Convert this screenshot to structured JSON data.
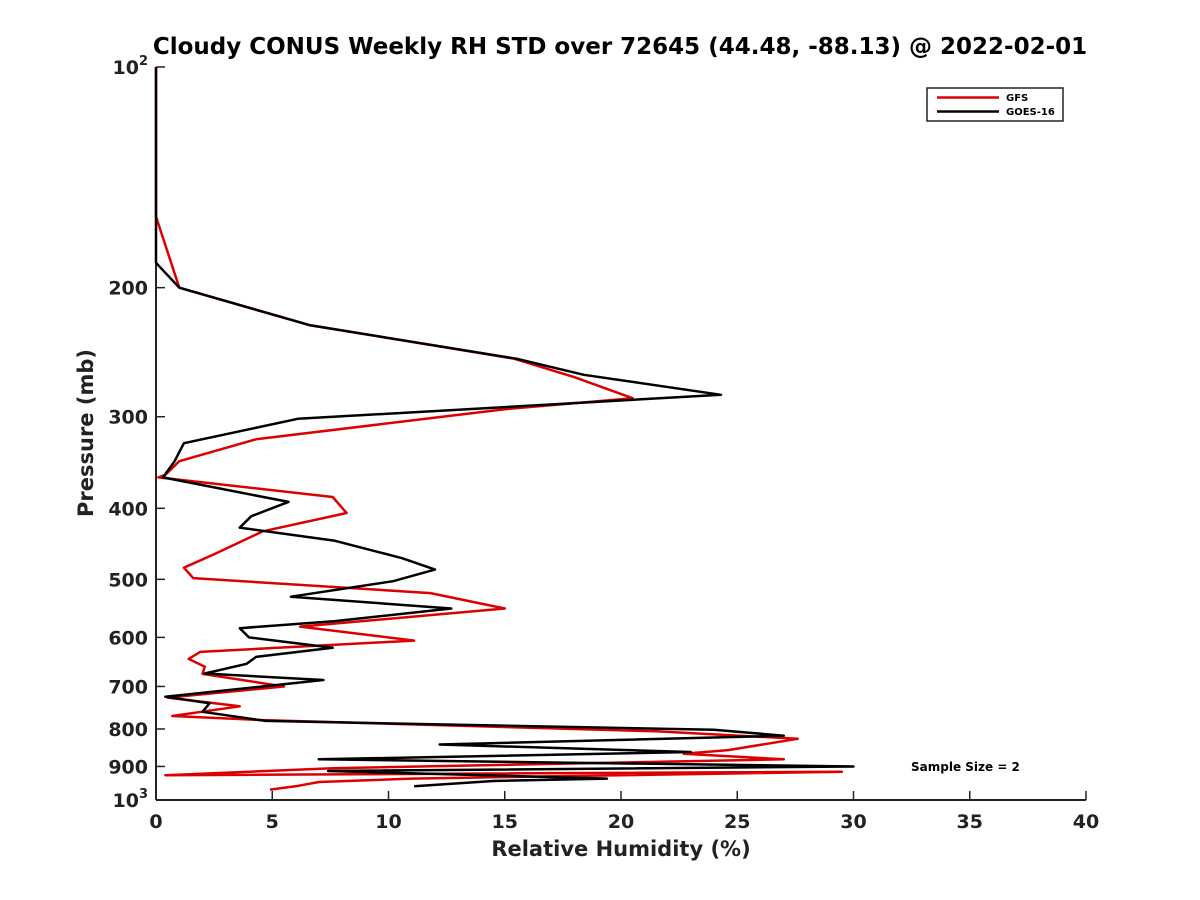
{
  "chart_data": {
    "type": "line",
    "title": "Cloudy CONUS Weekly RH STD over 72645 (44.48, -88.13) @ 2022-02-01",
    "xlabel": "Relative Humidity (%)",
    "ylabel": "Pressure (mb)",
    "xlim": [
      0,
      40
    ],
    "ylim": [
      100,
      1000
    ],
    "yscale": "log",
    "y_reversed": true,
    "xticks": [
      0,
      5,
      10,
      15,
      20,
      25,
      30,
      35,
      40
    ],
    "xtick_labels": [
      "0",
      "5",
      "10",
      "15",
      "20",
      "25",
      "30",
      "35",
      "40"
    ],
    "yticks": [
      {
        "value": 100,
        "base": "10",
        "exp": "2"
      },
      {
        "value": 200,
        "base": "200",
        "exp": ""
      },
      {
        "value": 300,
        "base": "300",
        "exp": ""
      },
      {
        "value": 400,
        "base": "400",
        "exp": ""
      },
      {
        "value": 500,
        "base": "500",
        "exp": ""
      },
      {
        "value": 600,
        "base": "600",
        "exp": ""
      },
      {
        "value": 700,
        "base": "700",
        "exp": ""
      },
      {
        "value": 800,
        "base": "800",
        "exp": ""
      },
      {
        "value": 900,
        "base": "900",
        "exp": ""
      },
      {
        "value": 1000,
        "base": "10",
        "exp": "3"
      }
    ],
    "grid": false,
    "legend_position": "top-right",
    "annotation": "Sample Size = 2",
    "series": [
      {
        "name": "GFS",
        "color": "#dd0000",
        "points": [
          [
            0,
            100
          ],
          [
            0,
            160
          ],
          [
            1.0,
            200
          ],
          [
            6.6,
            225
          ],
          [
            15.4,
            250
          ],
          [
            18.0,
            265
          ],
          [
            20.5,
            283
          ],
          [
            15.0,
            293
          ],
          [
            4.3,
            322
          ],
          [
            1.0,
            345
          ],
          [
            0.4,
            360
          ],
          [
            0.1,
            363
          ],
          [
            7.6,
            386
          ],
          [
            8.2,
            406
          ],
          [
            4.6,
            430
          ],
          [
            2.5,
            462
          ],
          [
            1.2,
            482
          ],
          [
            1.6,
            498
          ],
          [
            11.8,
            522
          ],
          [
            15.0,
            548
          ],
          [
            6.2,
            580
          ],
          [
            11.1,
            606
          ],
          [
            1.9,
            628
          ],
          [
            1.4,
            642
          ],
          [
            2.1,
            658
          ],
          [
            2.0,
            673
          ],
          [
            5.5,
            700
          ],
          [
            0.5,
            725
          ],
          [
            3.6,
            745
          ],
          [
            0.7,
            768
          ],
          [
            4.6,
            778
          ],
          [
            21.5,
            806
          ],
          [
            27.6,
            825
          ],
          [
            24.6,
            855
          ],
          [
            22.7,
            865
          ],
          [
            27.0,
            880
          ],
          [
            7.6,
            905
          ],
          [
            0.4,
            925
          ],
          [
            29.5,
            915
          ],
          [
            11.0,
            935
          ],
          [
            7.0,
            945
          ],
          [
            6.0,
            958
          ],
          [
            4.9,
            968
          ]
        ]
      },
      {
        "name": "GOES-16",
        "color": "#000000",
        "points": [
          [
            0,
            100
          ],
          [
            0,
            185
          ],
          [
            1.0,
            200
          ],
          [
            6.6,
            225
          ],
          [
            15.5,
            250
          ],
          [
            18.4,
            263
          ],
          [
            24.3,
            280
          ],
          [
            6.1,
            302
          ],
          [
            1.2,
            326
          ],
          [
            0.8,
            345
          ],
          [
            0.3,
            363
          ],
          [
            5.7,
            392
          ],
          [
            4.1,
            410
          ],
          [
            3.6,
            425
          ],
          [
            7.7,
            443
          ],
          [
            10.6,
            468
          ],
          [
            12.0,
            485
          ],
          [
            10.2,
            503
          ],
          [
            5.8,
            528
          ],
          [
            12.7,
            548
          ],
          [
            7.7,
            570
          ],
          [
            3.6,
            583
          ],
          [
            4.0,
            600
          ],
          [
            7.6,
            620
          ],
          [
            4.3,
            638
          ],
          [
            3.9,
            652
          ],
          [
            2.1,
            672
          ],
          [
            7.2,
            686
          ],
          [
            0.4,
            723
          ],
          [
            2.3,
            738
          ],
          [
            2.0,
            758
          ],
          [
            4.7,
            780
          ],
          [
            24.0,
            802
          ],
          [
            27.0,
            817
          ],
          [
            12.2,
            840
          ],
          [
            23.0,
            860
          ],
          [
            7.0,
            880
          ],
          [
            30.0,
            900
          ],
          [
            7.4,
            913
          ],
          [
            19.4,
            935
          ],
          [
            14.5,
            942
          ],
          [
            11.1,
            958
          ]
        ]
      }
    ]
  }
}
